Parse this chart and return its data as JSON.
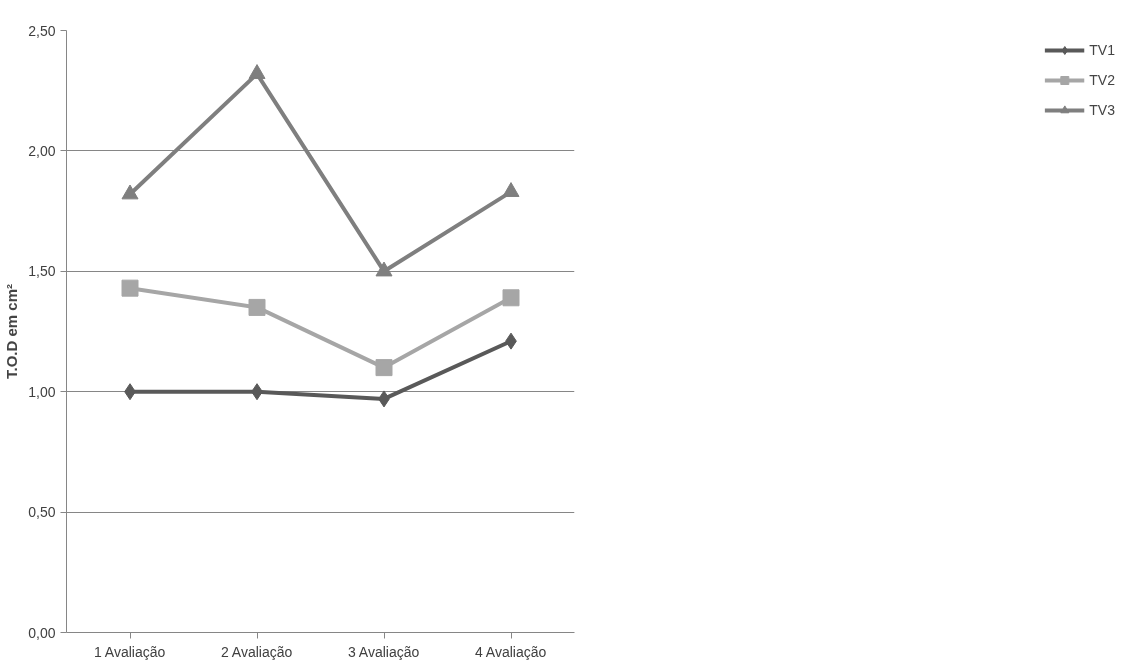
{
  "chart_data": {
    "type": "line",
    "ylabel": "T.O.D em cm²",
    "categories": [
      "1 Avaliação",
      "2 Avaliação",
      "3 Avaliação",
      "4 Avaliação"
    ],
    "series": [
      {
        "name": "TV1",
        "color": "#595959",
        "marker": "diamond",
        "values": [
          1.0,
          1.0,
          0.97,
          1.21
        ]
      },
      {
        "name": "TV2",
        "color": "#a6a6a6",
        "marker": "square",
        "values": [
          1.43,
          1.35,
          1.1,
          1.39
        ]
      },
      {
        "name": "TV3",
        "color": "#7f7f7f",
        "marker": "triangle",
        "values": [
          1.82,
          2.32,
          1.5,
          1.83
        ]
      }
    ],
    "ylim": [
      0,
      2.5
    ],
    "yticks": [
      {
        "value": 0,
        "label": "0,00"
      },
      {
        "value": 0.5,
        "label": "0,50"
      },
      {
        "value": 1,
        "label": "1,00"
      },
      {
        "value": 1.5,
        "label": "1,50"
      },
      {
        "value": 2,
        "label": "2,00"
      },
      {
        "value": 2.5,
        "label": "2,50"
      }
    ],
    "grid": "y",
    "legend": "right",
    "line_style": "solid"
  }
}
